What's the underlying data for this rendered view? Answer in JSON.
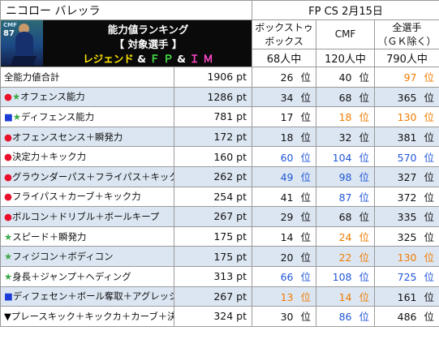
{
  "header": {
    "player_name": "ニコロー バレッラ",
    "date": "FP CS 2月15日"
  },
  "hero": {
    "card_position": "CMF",
    "card_rating": "87",
    "line1": "能力値ランキング",
    "line2": "【 対象選手 】",
    "line3_a": "レジェンド",
    "amp1": "&",
    "line3_b": "Ｆ Ｐ",
    "amp2": "&",
    "line3_c": "Ｉ Ｍ"
  },
  "columns": {
    "box_line1": "ボックストゥ",
    "box_line2": "ボックス",
    "cmf": "CMF",
    "all_line1": "全選手",
    "all_line2": "（ＧＫ除く）",
    "box_count": "68人中",
    "cmf_count": "120人中",
    "all_count": "790人中"
  },
  "rank_unit": "位",
  "rows": [
    {
      "marker": "",
      "label": "全能力値合計",
      "points": "1906 pt",
      "box": "26",
      "cmf": "40",
      "all": "97"
    },
    {
      "marker": "●★",
      "label": "オフェンス能力",
      "points": "1286 pt",
      "box": "34",
      "cmf": "68",
      "all": "365"
    },
    {
      "marker": "■★",
      "label": "ディフェンス能力",
      "points": "781 pt",
      "box": "17",
      "cmf": "18",
      "all": "130"
    },
    {
      "marker": "●",
      "label": "オフェンスセンス＋瞬発力",
      "points": "172 pt",
      "box": "18",
      "cmf": "32",
      "all": "381"
    },
    {
      "marker": "●",
      "label": "決定力＋キック力",
      "points": "160 pt",
      "box": "60",
      "cmf": "104",
      "all": "570"
    },
    {
      "marker": "●",
      "label": "グラウンダーパス＋フライパス＋キック力",
      "points": "262 pt",
      "box": "49",
      "cmf": "98",
      "all": "327"
    },
    {
      "marker": "●",
      "label": "フライパス＋カーブ＋キック力",
      "points": "254 pt",
      "box": "41",
      "cmf": "87",
      "all": "372"
    },
    {
      "marker": "●",
      "label": "ボルコン＋ドリブル＋ボールキープ",
      "points": "267 pt",
      "box": "29",
      "cmf": "68",
      "all": "335"
    },
    {
      "marker": "★",
      "label": "スピード＋瞬発力",
      "points": "175 pt",
      "box": "14",
      "cmf": "24",
      "all": "325"
    },
    {
      "marker": "★",
      "label": "フィジコン＋ボディコン",
      "points": "175 pt",
      "box": "20",
      "cmf": "22",
      "all": "130"
    },
    {
      "marker": "★",
      "label": "身長＋ジャンプ＋ヘディング",
      "points": "313 pt",
      "box": "66",
      "cmf": "108",
      "all": "725"
    },
    {
      "marker": "■",
      "label": "ディフェセン＋ボール奪取＋アグレッシブ",
      "points": "267 pt",
      "box": "13",
      "cmf": "14",
      "all": "161"
    },
    {
      "marker": "▼",
      "label": "プレースキック＋キックカ＋カーブ＋決定力",
      "points": "324 pt",
      "box": "30",
      "cmf": "86",
      "all": "486"
    }
  ],
  "colors": {
    "rank_blue": "#1f56d8",
    "rank_orange": "#f07b00",
    "rank_black": "#111111",
    "marker_red": "#e8102a",
    "marker_green": "#3da84a",
    "marker_blue": "#1b3bd6",
    "row_alt": "#dce6f2"
  },
  "icons": {
    "circle": "red-circle-icon",
    "star": "green-star-icon",
    "square": "blue-square-icon",
    "triangle": "black-triangle-icon"
  }
}
